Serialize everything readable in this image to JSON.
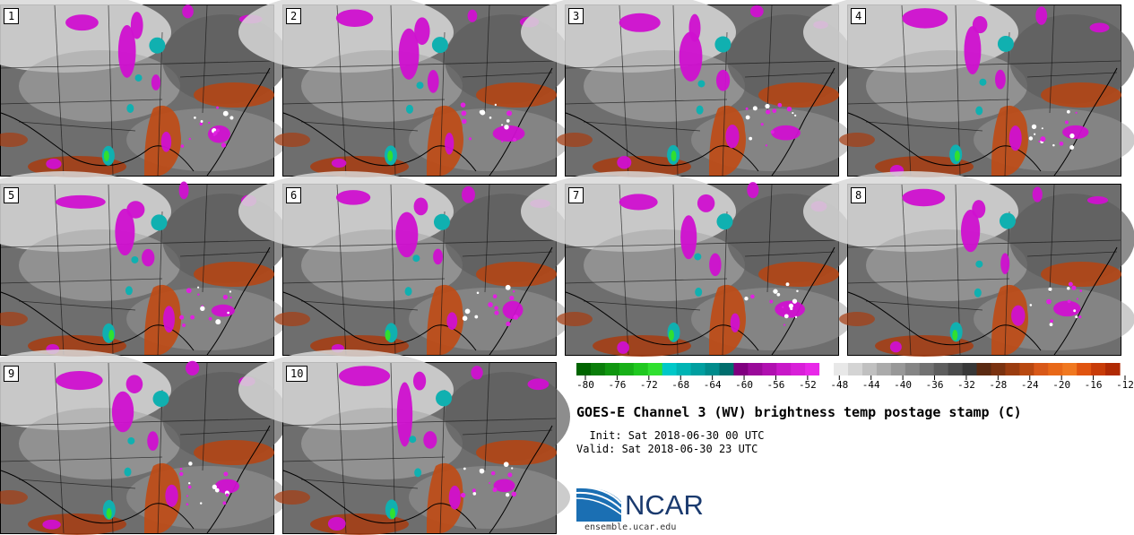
{
  "panels": [
    {
      "label": "1"
    },
    {
      "label": "2"
    },
    {
      "label": "3"
    },
    {
      "label": "4"
    },
    {
      "label": "5"
    },
    {
      "label": "6"
    },
    {
      "label": "7"
    },
    {
      "label": "8"
    },
    {
      "label": "9"
    },
    {
      "label": "10"
    }
  ],
  "colorbar": {
    "tick_labels": [
      "-80",
      "-76",
      "-72",
      "-68",
      "-64",
      "-60",
      "-56",
      "-52",
      "-48",
      "-44",
      "-40",
      "-36",
      "-32",
      "-28",
      "-24",
      "-20",
      "-16",
      "-12"
    ],
    "colors": [
      "#006400",
      "#0a7d0a",
      "#109610",
      "#18b018",
      "#20c820",
      "#30e030",
      "#00c8c8",
      "#00b4b4",
      "#009fa0",
      "#008c8c",
      "#006e6e",
      "#800080",
      "#9a0a9a",
      "#b010b0",
      "#c818c8",
      "#d820d8",
      "#e828e8",
      "#ffffff",
      "#e8e8e8",
      "#d4d4d4",
      "#c0c0c0",
      "#ababab",
      "#989898",
      "#858585",
      "#727272",
      "#5e5e5e",
      "#4b4b4b",
      "#383838",
      "#5a2a12",
      "#7a3210",
      "#9a3c10",
      "#b84810",
      "#d85818",
      "#e86818",
      "#f07820",
      "#e05410",
      "#c83c08",
      "#b02a04"
    ]
  },
  "title": "GOES-E Channel 3 (WV) brightness temp postage stamp (C)",
  "init": "  Init: Sat 2018-06-30 00 UTC",
  "valid": "Valid: Sat 2018-06-30 23 UTC",
  "logo": {
    "name": "NCAR",
    "site": "ensemble.ucar.edu"
  }
}
